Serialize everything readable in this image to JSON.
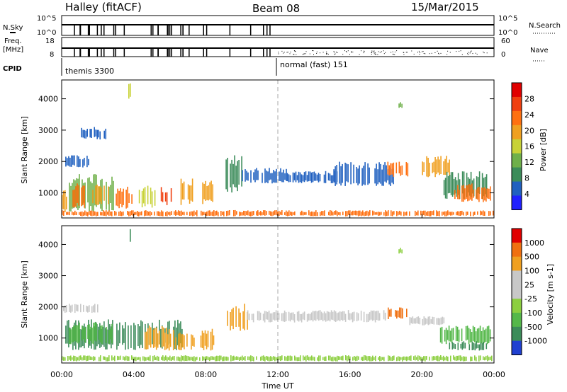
{
  "header": {
    "station": "Halley (fitACF)",
    "beam": "Beam 08",
    "date": "15/Mar/2015"
  },
  "top_panels": {
    "nsky": {
      "label": "N.Sky",
      "tick_top": "10^5",
      "tick_bottom": "10^0"
    },
    "nsearch": {
      "label": "N.Search",
      "tick_top": "10^5",
      "tick_bottom": "10^0"
    },
    "freq": {
      "label_line1": "Freq.",
      "label_line2": "[MHz]",
      "tick_top": "18",
      "tick_bottom": "8"
    },
    "nave": {
      "label": "Nave",
      "tick_top": "60",
      "tick_bottom": "0"
    },
    "cpid": {
      "label": "CPID",
      "modes": [
        {
          "name": "themis 3300",
          "start_hour": 0
        },
        {
          "name": "normal (fast) 151",
          "start_hour": 12
        }
      ]
    }
  },
  "chart_data": [
    {
      "type": "heatmap",
      "title": "Power",
      "ylabel": "Slant Range [km]",
      "xlabel": "",
      "xlim_hours": [
        0,
        24
      ],
      "ylim": [
        200,
        4600
      ],
      "y_ticks": [
        "1000",
        "2000",
        "3000",
        "4000"
      ],
      "colorbar": {
        "label": "Power [dB]",
        "ticks": [
          "4",
          "8",
          "12",
          "16",
          "20",
          "24",
          "28"
        ],
        "colors": [
          "#2020ff",
          "#2060c0",
          "#3c8c5a",
          "#6fb04a",
          "#c8d236",
          "#f0a020",
          "#ff7010",
          "#f04010",
          "#e00000"
        ]
      },
      "regions": [
        {
          "x": [
            0,
            0.3
          ],
          "y": [
            300,
            1100
          ],
          "level": 5
        },
        {
          "x": [
            0.4,
            2.9
          ],
          "y": [
            400,
            1600
          ],
          "level": 3
        },
        {
          "x": [
            0.6,
            1.3
          ],
          "y": [
            500,
            1300
          ],
          "level": 6
        },
        {
          "x": [
            1.7,
            2.6
          ],
          "y": [
            600,
            1300
          ],
          "level": 5
        },
        {
          "x": [
            3.0,
            3.9
          ],
          "y": [
            500,
            1200
          ],
          "level": 6
        },
        {
          "x": [
            4.2,
            5.2
          ],
          "y": [
            500,
            1300
          ],
          "level": 4
        },
        {
          "x": [
            5.5,
            6.1
          ],
          "y": [
            600,
            1200
          ],
          "level": 7
        },
        {
          "x": [
            6.6,
            7.3
          ],
          "y": [
            600,
            1500
          ],
          "level": 5
        },
        {
          "x": [
            7.8,
            8.5
          ],
          "y": [
            600,
            1400
          ],
          "level": 5
        },
        {
          "x": [
            9.1,
            10.0
          ],
          "y": [
            1000,
            2200
          ],
          "level": 2
        },
        {
          "x": [
            10.0,
            12.5
          ],
          "y": [
            1300,
            1800
          ],
          "level": 1
        },
        {
          "x": [
            12.5,
            15.3
          ],
          "y": [
            1300,
            1700
          ],
          "level": 1
        },
        {
          "x": [
            15.0,
            18.4
          ],
          "y": [
            1200,
            2000
          ],
          "level": 1
        },
        {
          "x": [
            18.0,
            19.2
          ],
          "y": [
            1500,
            2000
          ],
          "level": 6
        },
        {
          "x": [
            18.7,
            18.9
          ],
          "y": [
            3700,
            3900
          ],
          "level": 3
        },
        {
          "x": [
            20.0,
            21.6
          ],
          "y": [
            1500,
            2200
          ],
          "level": 5
        },
        {
          "x": [
            21.2,
            23.6
          ],
          "y": [
            800,
            1700
          ],
          "level": 2
        },
        {
          "x": [
            21.8,
            23.8
          ],
          "y": [
            700,
            1300
          ],
          "level": 6
        },
        {
          "x": [
            0.0,
            24.0
          ],
          "y": [
            250,
            450
          ],
          "level": 6
        },
        {
          "x": [
            3.7,
            3.8
          ],
          "y": [
            4000,
            4500
          ],
          "level": 4
        },
        {
          "x": [
            1.0,
            2.5
          ],
          "y": [
            2700,
            3100
          ],
          "level": 1
        },
        {
          "x": [
            0.2,
            1.5
          ],
          "y": [
            1800,
            2200
          ],
          "level": 1
        }
      ]
    },
    {
      "type": "heatmap",
      "title": "Velocity",
      "ylabel": "Slant Range [km]",
      "xlabel": "Time UT",
      "xlim_hours": [
        0,
        24
      ],
      "ylim": [
        200,
        4600
      ],
      "y_ticks": [
        "1000",
        "2000",
        "3000",
        "4000"
      ],
      "x_ticks": [
        "00:00",
        "04:00",
        "08:00",
        "12:00",
        "16:00",
        "20:00",
        "00:00"
      ],
      "colorbar": {
        "label": "Velocity [m s-1]",
        "ticks": [
          "1000",
          "500",
          "100",
          "25",
          "-25",
          "-100",
          "-500",
          "-1000"
        ],
        "colors": [
          "#2040d0",
          "#3c8c5a",
          "#55b84a",
          "#8ccf40",
          "#c8c8c8",
          "#c8c8c8",
          "#f0a020",
          "#f07010",
          "#e00000"
        ]
      },
      "regions": [
        {
          "x": [
            0.2,
            6.8
          ],
          "y": [
            600,
            1600
          ],
          "level": 1
        },
        {
          "x": [
            0.4,
            2.8
          ],
          "y": [
            800,
            1500
          ],
          "level": 2
        },
        {
          "x": [
            4.6,
            6.2
          ],
          "y": [
            600,
            1400
          ],
          "level": 6
        },
        {
          "x": [
            6.3,
            7.4
          ],
          "y": [
            600,
            1200
          ],
          "level": 6
        },
        {
          "x": [
            7.7,
            8.5
          ],
          "y": [
            600,
            1300
          ],
          "level": 6
        },
        {
          "x": [
            9.1,
            10.3
          ],
          "y": [
            1200,
            2100
          ],
          "level": 6
        },
        {
          "x": [
            10.3,
            18.0
          ],
          "y": [
            1500,
            1900
          ],
          "level": 4
        },
        {
          "x": [
            18.1,
            19.2
          ],
          "y": [
            1600,
            2000
          ],
          "level": 7
        },
        {
          "x": [
            19.3,
            21.2
          ],
          "y": [
            1400,
            1700
          ],
          "level": 4
        },
        {
          "x": [
            21.0,
            23.8
          ],
          "y": [
            800,
            1400
          ],
          "level": 2
        },
        {
          "x": [
            21.5,
            23.6
          ],
          "y": [
            600,
            900
          ],
          "level": 1
        },
        {
          "x": [
            0.0,
            24.0
          ],
          "y": [
            250,
            450
          ],
          "level": 3
        },
        {
          "x": [
            0.0,
            2.0
          ],
          "y": [
            1800,
            2100
          ],
          "level": 4
        },
        {
          "x": [
            3.7,
            3.8
          ],
          "y": [
            4000,
            4500
          ],
          "level": 1
        },
        {
          "x": [
            18.7,
            18.9
          ],
          "y": [
            3700,
            3900
          ],
          "level": 3
        }
      ]
    }
  ]
}
